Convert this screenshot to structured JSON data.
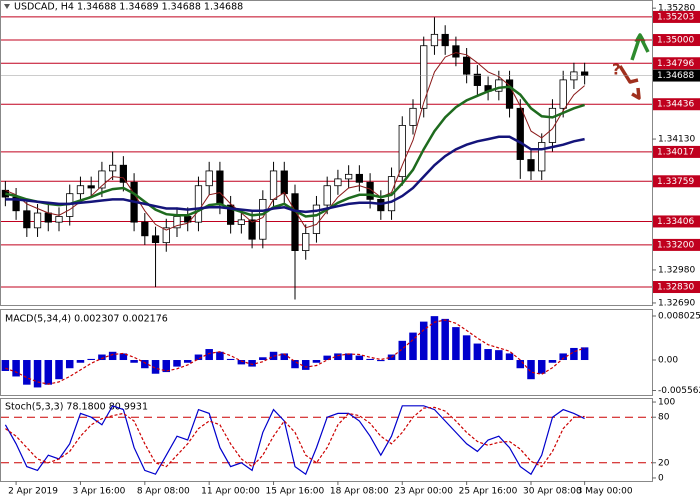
{
  "chart_data": [
    {
      "type": "candlestick",
      "title": "USDCAD, H4  1.34688 1.34689 1.34688 1.34688",
      "categories": [
        null,
        "2 Apr 2019",
        null,
        null,
        null,
        null,
        null,
        "3 Apr 16:00",
        null,
        null,
        null,
        null,
        null,
        "8 Apr 08:00",
        null,
        null,
        null,
        null,
        null,
        "11 Apr 00:00",
        null,
        null,
        null,
        null,
        null,
        "15 Apr 16:00",
        null,
        null,
        null,
        null,
        null,
        "18 Apr 08:00",
        null,
        null,
        null,
        null,
        null,
        "23 Apr 00:00",
        null,
        null,
        null,
        null,
        null,
        "25 Apr 16:00",
        null,
        null,
        null,
        null,
        null,
        "30 Apr 08:00",
        null,
        null,
        null,
        null,
        "3 May 00:00"
      ],
      "open": [
        1.3368,
        1.3362,
        1.335,
        1.3335,
        1.3348,
        1.334,
        1.3345,
        1.3365,
        1.3372,
        1.337,
        1.3385,
        1.339,
        1.3375,
        1.334,
        1.3328,
        1.3322,
        1.3335,
        1.3345,
        1.334,
        1.3372,
        1.3385,
        1.3355,
        1.3338,
        1.3342,
        1.3325,
        1.336,
        1.3385,
        1.3365,
        1.3315,
        1.333,
        1.3355,
        1.3372,
        1.3378,
        1.3382,
        1.3375,
        1.336,
        1.335,
        1.338,
        1.3425,
        1.344,
        1.3495,
        1.3505,
        1.3495,
        1.3485,
        1.347,
        1.346,
        1.3455,
        1.3465,
        1.344,
        1.3395,
        1.3385,
        1.341,
        1.344,
        1.3465,
        1.3472
      ],
      "high": [
        1.3376,
        1.337,
        1.3358,
        1.3356,
        1.3356,
        1.3353,
        1.3373,
        1.338,
        1.338,
        1.3393,
        1.3402,
        1.3398,
        1.3383,
        1.3348,
        1.3336,
        1.3343,
        1.3353,
        1.3353,
        1.338,
        1.3393,
        1.3393,
        1.3363,
        1.335,
        1.335,
        1.3368,
        1.3393,
        1.3393,
        1.3373,
        1.3338,
        1.3363,
        1.338,
        1.3386,
        1.339,
        1.339,
        1.3383,
        1.3368,
        1.3388,
        1.3433,
        1.3448,
        1.3503,
        1.352,
        1.3513,
        1.3503,
        1.3493,
        1.3478,
        1.3468,
        1.3473,
        1.3473,
        1.3448,
        1.3403,
        1.3418,
        1.3448,
        1.3473,
        1.348,
        1.348
      ],
      "low": [
        1.3354,
        1.3342,
        1.3327,
        1.3327,
        1.3332,
        1.3332,
        1.3337,
        1.3357,
        1.3362,
        1.3362,
        1.3377,
        1.3367,
        1.3332,
        1.332,
        1.3283,
        1.3314,
        1.3327,
        1.3332,
        1.3332,
        1.3364,
        1.3347,
        1.333,
        1.333,
        1.3317,
        1.3317,
        1.3352,
        1.3357,
        1.3272,
        1.3307,
        1.3322,
        1.3347,
        1.3364,
        1.337,
        1.3367,
        1.3352,
        1.3342,
        1.3342,
        1.3372,
        1.3417,
        1.3432,
        1.3487,
        1.3487,
        1.3477,
        1.3462,
        1.3452,
        1.3447,
        1.3447,
        1.3432,
        1.3378,
        1.3377,
        1.3377,
        1.3402,
        1.3432,
        1.3457,
        1.3461
      ],
      "close": [
        1.3362,
        1.335,
        1.3335,
        1.3348,
        1.334,
        1.3345,
        1.3365,
        1.3372,
        1.337,
        1.3385,
        1.339,
        1.3375,
        1.334,
        1.3328,
        1.3322,
        1.3335,
        1.3345,
        1.334,
        1.3372,
        1.3385,
        1.3355,
        1.3338,
        1.3342,
        1.3325,
        1.336,
        1.3385,
        1.3365,
        1.3315,
        1.333,
        1.3355,
        1.3372,
        1.3378,
        1.3382,
        1.3375,
        1.336,
        1.335,
        1.338,
        1.3425,
        1.344,
        1.3495,
        1.3505,
        1.3495,
        1.3485,
        1.347,
        1.346,
        1.3455,
        1.3465,
        1.344,
        1.3395,
        1.3385,
        1.341,
        1.344,
        1.3465,
        1.3472,
        1.34688
      ],
      "lines": [
        {
          "color": "#8b1a1a",
          "values": [
            1.3368,
            1.3364,
            1.3356,
            1.3352,
            1.3348,
            1.3346,
            1.3351,
            1.3358,
            1.3363,
            1.3372,
            1.338,
            1.3379,
            1.3365,
            1.335,
            1.3338,
            1.3333,
            1.3337,
            1.3339,
            1.335,
            1.3364,
            1.3366,
            1.3356,
            1.3348,
            1.334,
            1.3344,
            1.336,
            1.3366,
            1.335,
            1.3335,
            1.3338,
            1.335,
            1.3362,
            1.337,
            1.3372,
            1.3369,
            1.3362,
            1.3366,
            1.339,
            1.3412,
            1.3445,
            1.3472,
            1.3485,
            1.3489,
            1.3487,
            1.348,
            1.3472,
            1.3468,
            1.346,
            1.3442,
            1.342,
            1.3414,
            1.3422,
            1.3438,
            1.3452,
            1.346
          ]
        },
        {
          "color": "#1e6b1e",
          "values": [
            1.3365,
            1.3363,
            1.336,
            1.3358,
            1.3356,
            1.3355,
            1.3356,
            1.3359,
            1.3362,
            1.3366,
            1.3369,
            1.337,
            1.3365,
            1.3358,
            1.3351,
            1.3347,
            1.3346,
            1.3346,
            1.335,
            1.3355,
            1.3356,
            1.3352,
            1.3349,
            1.3346,
            1.3347,
            1.3353,
            1.3356,
            1.335,
            1.3345,
            1.3346,
            1.3351,
            1.3357,
            1.3361,
            1.3364,
            1.3364,
            1.3362,
            1.3364,
            1.3374,
            1.3386,
            1.3404,
            1.342,
            1.3432,
            1.3441,
            1.3447,
            1.3451,
            1.3455,
            1.3458,
            1.3459,
            1.3452,
            1.344,
            1.3433,
            1.3432,
            1.3436,
            1.344,
            1.3443
          ]
        },
        {
          "color": "#14147a",
          "values": [
            1.336,
            1.336,
            1.3359,
            1.3358,
            1.3357,
            1.3356,
            1.3356,
            1.3357,
            1.3358,
            1.3359,
            1.336,
            1.336,
            1.3358,
            1.3356,
            1.3354,
            1.3352,
            1.3352,
            1.3351,
            1.3352,
            1.3353,
            1.3353,
            1.3352,
            1.3351,
            1.335,
            1.335,
            1.3352,
            1.3353,
            1.335,
            1.3349,
            1.335,
            1.3352,
            1.3354,
            1.3356,
            1.3357,
            1.3357,
            1.3356,
            1.3358,
            1.3363,
            1.337,
            1.338,
            1.339,
            1.3398,
            1.3404,
            1.3408,
            1.3411,
            1.3413,
            1.3415,
            1.3415,
            1.341,
            1.3404,
            1.3404,
            1.3406,
            1.3408,
            1.3411,
            1.3413
          ]
        }
      ],
      "ylim": [
        1.32672,
        1.35343
      ],
      "yticks": [
        {
          "value": 1.3528,
          "label": "1.35280"
        },
        {
          "value": 1.3413,
          "label": "1.34130"
        },
        {
          "value": 1.3298,
          "label": "1.32980"
        },
        {
          "value": 1.3269,
          "label": "1.32690"
        }
      ],
      "levels": [
        {
          "value": 1.35203,
          "label": "1.35203"
        },
        {
          "value": 1.35,
          "label": "1.35000"
        },
        {
          "value": 1.34796,
          "label": "1.34796"
        },
        {
          "value": 1.34436,
          "label": "1.34436"
        },
        {
          "value": 1.34017,
          "label": "1.34017"
        },
        {
          "value": 1.33759,
          "label": "1.33759"
        },
        {
          "value": 1.33406,
          "label": "1.33406"
        },
        {
          "value": 1.332,
          "label": "1.33200"
        },
        {
          "value": 1.3283,
          "label": "1.32830"
        }
      ],
      "level_color": "#c0001e",
      "last_price": {
        "value": 1.34688,
        "label": "1.34688"
      },
      "annotation": "?"
    },
    {
      "type": "macd",
      "title": "MACD(5,34,4) 0.002307 0.002176",
      "color": "#0000cc",
      "signal_color": "#cc0000",
      "values": [
        -0.002,
        -0.003,
        -0.0045,
        -0.005,
        -0.0045,
        -0.0035,
        -0.0015,
        -0.0005,
        0.0002,
        0.001,
        0.0015,
        0.0012,
        -0.0005,
        -0.0015,
        -0.0025,
        -0.0022,
        -0.0012,
        -0.0005,
        0.001,
        0.002,
        0.0015,
        0.0002,
        -0.0008,
        -0.0012,
        0.0005,
        0.0015,
        0.0012,
        -0.0015,
        -0.0018,
        -0.0005,
        0.0008,
        0.0012,
        0.0012,
        0.0008,
        0.0002,
        -0.0002,
        0.001,
        0.0035,
        0.005,
        0.007,
        0.008,
        0.0075,
        0.006,
        0.0045,
        0.003,
        0.002,
        0.0018,
        0.0012,
        -0.0015,
        -0.0035,
        -0.0025,
        -0.0005,
        0.0012,
        0.0022,
        0.002307
      ],
      "signal": [
        -0.0015,
        -0.0022,
        -0.0032,
        -0.004,
        -0.0044,
        -0.004,
        -0.003,
        -0.0018,
        -0.0006,
        0.0003,
        0.001,
        0.0012,
        0.0005,
        -0.0005,
        -0.0015,
        -0.002,
        -0.0016,
        -0.0009,
        0.0002,
        0.0012,
        0.0015,
        0.0008,
        -0.0002,
        -0.0008,
        -0.0003,
        0.0007,
        0.0011,
        -0.0003,
        -0.0013,
        -0.001,
        0.0,
        0.0008,
        0.0011,
        0.001,
        0.0005,
        0.0001,
        0.0005,
        0.002,
        0.0037,
        0.0055,
        0.0069,
        0.0073,
        0.0067,
        0.0054,
        0.004,
        0.0028,
        0.0022,
        0.0016,
        0.0,
        -0.0022,
        -0.0026,
        -0.0014,
        0.0003,
        0.0015,
        0.002176
      ],
      "ylim": [
        -0.00638,
        0.00912
      ],
      "yticks": [
        {
          "value": 0.008025,
          "label": "0.008025"
        },
        {
          "value": 0,
          "label": "0.00"
        },
        -0.005562
      ]
    },
    {
      "type": "stochastic",
      "title": "Stoch(5,3,3) 78.1800 80.9931",
      "color": "#0000cc",
      "signal_color": "#cc0000",
      "values": [
        70,
        45,
        15,
        10,
        30,
        25,
        45,
        85,
        80,
        70,
        95,
        90,
        40,
        10,
        5,
        30,
        55,
        50,
        90,
        85,
        40,
        15,
        20,
        10,
        60,
        90,
        75,
        15,
        5,
        40,
        80,
        85,
        85,
        75,
        55,
        30,
        55,
        95,
        95,
        95,
        90,
        75,
        60,
        45,
        35,
        50,
        55,
        40,
        15,
        5,
        30,
        80,
        90,
        85,
        78.18
      ],
      "signal": [
        65,
        55,
        40,
        25,
        20,
        25,
        35,
        55,
        70,
        78,
        82,
        85,
        75,
        45,
        20,
        15,
        30,
        45,
        65,
        75,
        70,
        45,
        25,
        15,
        30,
        55,
        75,
        60,
        30,
        20,
        40,
        70,
        85,
        82,
        72,
        55,
        45,
        60,
        80,
        92,
        93,
        88,
        75,
        60,
        48,
        43,
        47,
        48,
        38,
        22,
        15,
        35,
        65,
        80,
        80.9931
      ],
      "ylim": [
        -4,
        104
      ],
      "yticks": [
        100,
        80,
        20,
        0
      ],
      "levels": [
        80,
        20
      ]
    }
  ]
}
